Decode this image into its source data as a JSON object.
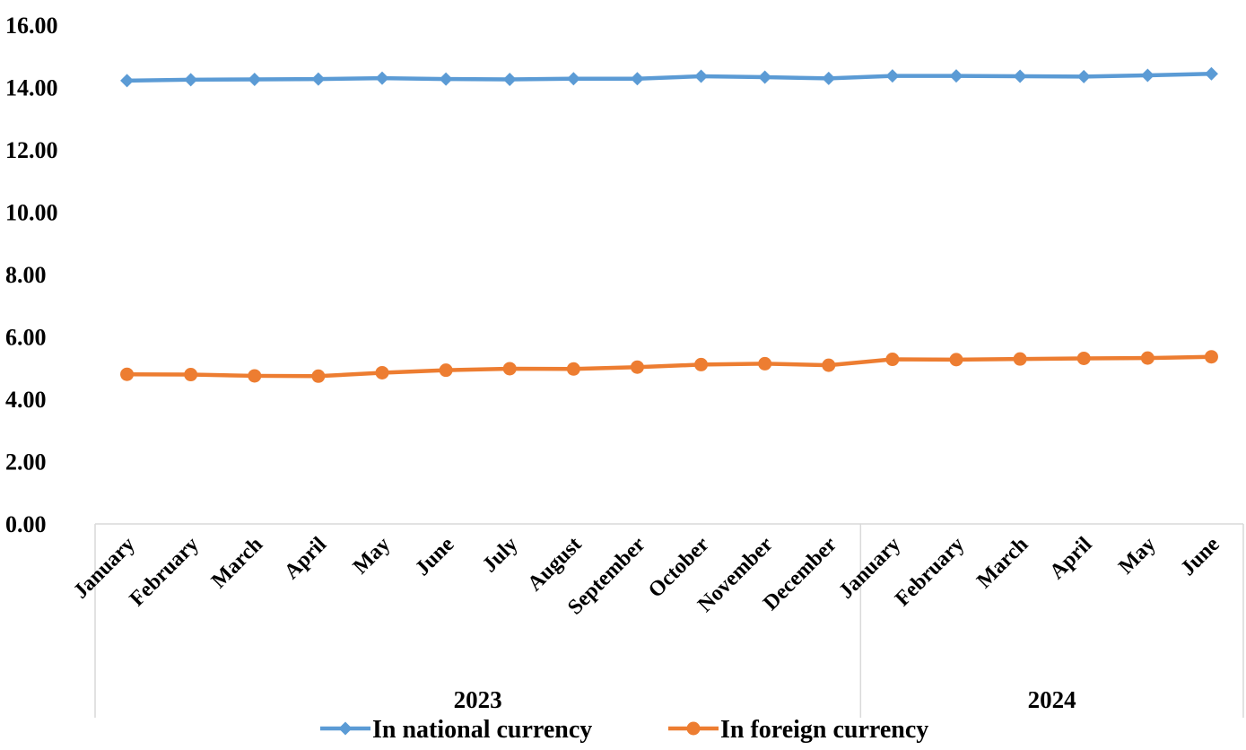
{
  "chart_data": {
    "type": "line",
    "categories": [
      "January",
      "February",
      "March",
      "April",
      "May",
      "June",
      "July",
      "August",
      "September",
      "October",
      "November",
      "December",
      "January",
      "February",
      "March",
      "April",
      "May",
      "June"
    ],
    "category_groups": [
      {
        "label": "2023",
        "count": 12
      },
      {
        "label": "2024",
        "count": 6
      }
    ],
    "series": [
      {
        "name": "In national currency",
        "color": "#5B9BD5",
        "marker": "diamond",
        "values": [
          14.22,
          14.25,
          14.26,
          14.27,
          14.3,
          14.27,
          14.26,
          14.28,
          14.28,
          14.36,
          14.33,
          14.29,
          14.37,
          14.37,
          14.36,
          14.35,
          14.39,
          14.44
        ]
      },
      {
        "name": "In foreign currency",
        "color": "#ED7D31",
        "marker": "circle",
        "values": [
          4.8,
          4.79,
          4.75,
          4.74,
          4.85,
          4.93,
          4.98,
          4.97,
          5.03,
          5.11,
          5.14,
          5.09,
          5.28,
          5.27,
          5.29,
          5.31,
          5.32,
          5.36
        ]
      }
    ],
    "ylim": [
      0,
      16
    ],
    "yticks": [
      "0.00",
      "2.00",
      "4.00",
      "6.00",
      "8.00",
      "10.00",
      "12.00",
      "14.00",
      "16.00"
    ],
    "grid": false,
    "legend_position": "bottom",
    "title": "",
    "xlabel": "",
    "ylabel": ""
  }
}
